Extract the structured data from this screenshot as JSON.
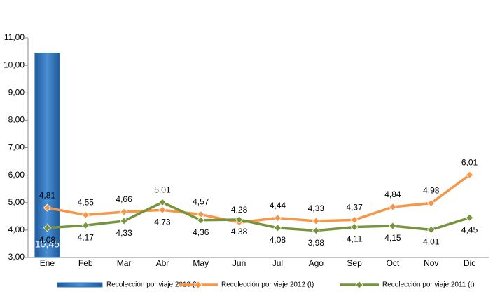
{
  "chart_data": {
    "type": "bar",
    "categories": [
      "Ene",
      "Feb",
      "Mar",
      "Abr",
      "May",
      "Jun",
      "Jul",
      "Ago",
      "Sep",
      "Oct",
      "Nov",
      "Dic"
    ],
    "series": [
      {
        "name": "Recolección por viaje 2013 (t)",
        "type": "bar",
        "color": "#2e75b6",
        "values": [
          10.45,
          null,
          null,
          null,
          null,
          null,
          null,
          null,
          null,
          null,
          null,
          null
        ],
        "value_labels": [
          "10,45",
          null,
          null,
          null,
          null,
          null,
          null,
          null,
          null,
          null,
          null,
          null
        ]
      },
      {
        "name": "Recolección por viaje 2012 (t)",
        "type": "line",
        "color": "#f79646",
        "values": [
          4.81,
          4.55,
          4.66,
          4.73,
          4.57,
          4.28,
          4.44,
          4.33,
          4.37,
          4.84,
          4.98,
          6.01
        ],
        "value_labels": [
          "4,81",
          "4,55",
          "4,66",
          "4,73",
          "4,57",
          "4,28",
          "4,44",
          "4,33",
          "4,37",
          "4,84",
          "4,98",
          "6,01"
        ]
      },
      {
        "name": "Recolección por viaje 2011 (t)",
        "type": "line",
        "color": "#77933c",
        "values": [
          4.08,
          4.17,
          4.33,
          5.01,
          4.36,
          4.38,
          4.08,
          3.98,
          4.11,
          4.15,
          4.01,
          4.45
        ],
        "value_labels": [
          "4,08",
          "4,17",
          "4,33",
          "5,01",
          "4,36",
          "4,38",
          "4,08",
          "3,98",
          "4,11",
          "4,15",
          "4,01",
          "4,45"
        ]
      }
    ],
    "ylim": [
      3,
      11
    ],
    "yticks": [
      {
        "value": 3,
        "label": "3,00"
      },
      {
        "value": 4,
        "label": "4,00"
      },
      {
        "value": 5,
        "label": "5,00"
      },
      {
        "value": 6,
        "label": "6,00"
      },
      {
        "value": 7,
        "label": "7,00"
      },
      {
        "value": 8,
        "label": "8,00"
      },
      {
        "value": 9,
        "label": "9,00"
      },
      {
        "value": 10,
        "label": "10,00"
      },
      {
        "value": 11,
        "label": "11,00"
      }
    ],
    "grid": false,
    "legend": "bottom"
  }
}
